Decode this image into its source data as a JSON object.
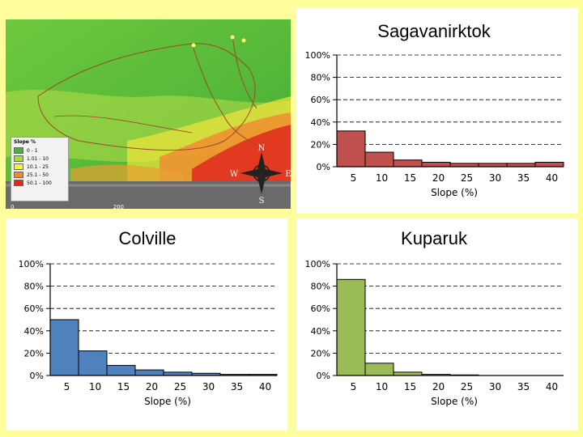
{
  "map": {
    "legend_title": "Slope %",
    "legend_items": [
      {
        "label": "0 - 1",
        "color": "#4cae3c"
      },
      {
        "label": "1.01 - 10",
        "color": "#a6d84a"
      },
      {
        "label": "10.1 - 25",
        "color": "#f2f24a"
      },
      {
        "label": "25.1 - 50",
        "color": "#f08a2e"
      },
      {
        "label": "50.1 - 100",
        "color": "#e0281e"
      }
    ],
    "scale_start": "0",
    "scale_end": "200",
    "scale_unit": "Km",
    "compass": {
      "n": "N",
      "s": "S",
      "e": "E",
      "w": "W"
    }
  },
  "chart_data": [
    {
      "type": "bar",
      "title": "Sagavanirktok",
      "xlabel": "Slope (%)",
      "ylabel": "",
      "categories": [
        "5",
        "10",
        "15",
        "20",
        "25",
        "30",
        "35",
        "40"
      ],
      "values": [
        32,
        13,
        6,
        4,
        3,
        3,
        3,
        4
      ],
      "ylim": [
        0,
        100
      ],
      "yticks": [
        "0%",
        "20%",
        "40%",
        "60%",
        "80%",
        "100%"
      ],
      "color": "#c0504d",
      "grid": "dashed-horizontal"
    },
    {
      "type": "bar",
      "title": "Colville",
      "xlabel": "Slope (%)",
      "ylabel": "",
      "categories": [
        "5",
        "10",
        "15",
        "20",
        "25",
        "30",
        "35",
        "40"
      ],
      "values": [
        50,
        22,
        9,
        5,
        3,
        2,
        1,
        1
      ],
      "ylim": [
        0,
        100
      ],
      "yticks": [
        "0%",
        "20%",
        "40%",
        "60%",
        "80%",
        "100%"
      ],
      "color": "#4f81bd",
      "grid": "dashed-horizontal"
    },
    {
      "type": "bar",
      "title": "Kuparuk",
      "xlabel": "Slope (%)",
      "ylabel": "",
      "categories": [
        "5",
        "10",
        "15",
        "20",
        "25",
        "30",
        "35",
        "40"
      ],
      "values": [
        86,
        11,
        3,
        1,
        0.5,
        0,
        0,
        0
      ],
      "ylim": [
        0,
        100
      ],
      "yticks": [
        "0%",
        "20%",
        "40%",
        "60%",
        "80%",
        "100%"
      ],
      "color": "#9bbb59",
      "grid": "dashed-horizontal"
    }
  ]
}
